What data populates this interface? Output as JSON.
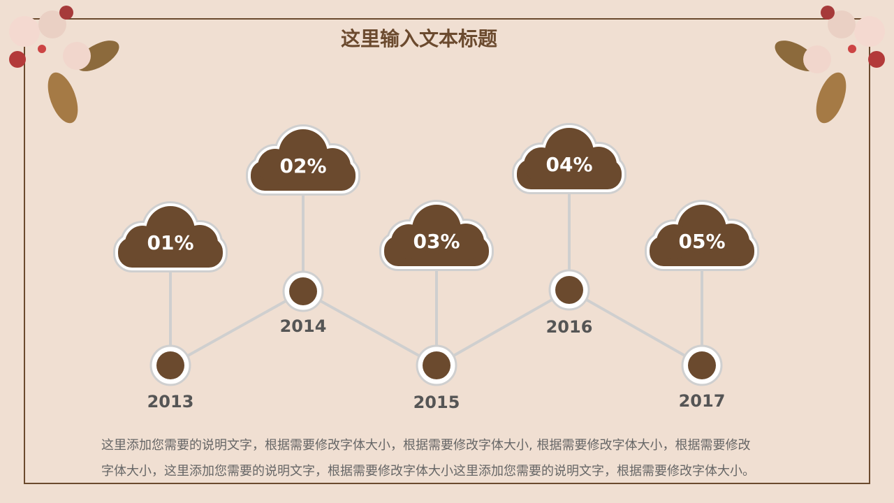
{
  "title": "这里输入文本标题",
  "nodes": [
    {
      "label": "01%",
      "year": "2013"
    },
    {
      "label": "02%",
      "year": "2014"
    },
    {
      "label": "03%",
      "year": "2015"
    },
    {
      "label": "04%",
      "year": "2016"
    },
    {
      "label": "05%",
      "year": "2017"
    }
  ],
  "description": [
    "这里添加您需要的说明文字，根据需要修改字体大小，根据需要修改字体大小, 根据需要修改字体大小，根据需要修改",
    "字体大小，这里添加您需要的说明文字，根据需要修改字体大小这里添加您需要的说明文字，根据需要修改字体大小。"
  ]
}
